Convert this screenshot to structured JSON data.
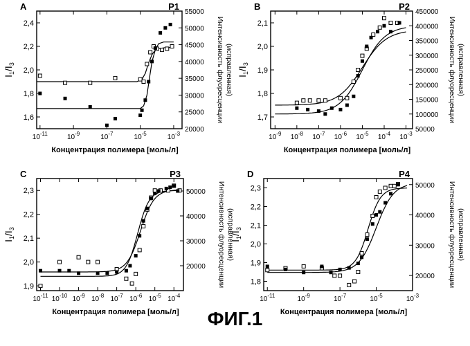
{
  "figure": {
    "caption": "ФИГ.1"
  },
  "chart_data": [
    {
      "type": "scatter",
      "panel_letter": "A",
      "title": "P1",
      "xlabel": "Концентрация полимера [моль/л]",
      "ylabel_main": "I",
      "ylabel_sub1": "1",
      "ylabel_slash": "/",
      "ylabel_main2": "I",
      "ylabel_sub2": "3",
      "y2label_line1": "Интенсивность флуоресценции",
      "y2label_line2": "(исправленная)",
      "x_scale": "log",
      "xlim": [
        -11.2,
        -2.5
      ],
      "ylim": [
        1.5,
        2.5
      ],
      "y2lim": [
        20000,
        55000
      ],
      "x_tick_exponents": [
        -11,
        -9,
        -7,
        -5,
        -3
      ],
      "y_ticks": [
        "1,6",
        "1,8",
        "2,0",
        "2,2",
        "2,4"
      ],
      "y_tick_values": [
        1.6,
        1.8,
        2.0,
        2.2,
        2.4
      ],
      "y2_ticks": [
        20000,
        25000,
        30000,
        35000,
        40000,
        45000,
        50000,
        55000
      ],
      "series": [
        {
          "marker": "open-square",
          "axis": "y",
          "x": [
            -11,
            -9.5,
            -8,
            -6.5,
            -5,
            -4.8,
            -4.6,
            -4.4,
            -4.2,
            -4,
            -3.7,
            -3.4,
            -3.1
          ],
          "y": [
            1.95,
            1.89,
            1.89,
            1.93,
            1.92,
            1.9,
            2.05,
            2.15,
            2.2,
            2.18,
            2.17,
            2.18,
            2.2
          ]
        },
        {
          "marker": "filled-square",
          "axis": "y2",
          "x": [
            -11,
            -9.5,
            -8,
            -7,
            -6.5,
            -5,
            -4.9,
            -4.7,
            -4.5,
            -4.3,
            -4.1,
            -3.8,
            -3.5,
            -3.2
          ],
          "y": [
            30500,
            29000,
            26500,
            21000,
            23000,
            24000,
            25500,
            28500,
            34000,
            40000,
            44000,
            48500,
            50000,
            51000
          ]
        }
      ],
      "fits": [
        {
          "axis": "y",
          "x": [
            -11.2,
            -5.2,
            -4.9,
            -4.7,
            -4.5,
            -4.3,
            -4.1,
            -3.9,
            -3.5,
            -3.0
          ],
          "y": [
            1.9,
            1.9,
            1.92,
            1.97,
            2.06,
            2.13,
            2.17,
            2.18,
            2.19,
            2.19
          ]
        },
        {
          "axis": "y2",
          "x": [
            -11.2,
            -5.0,
            -4.8,
            -4.6,
            -4.45,
            -4.3,
            -4.1,
            -3.9,
            -3.6,
            -3.0
          ],
          "y": [
            26000,
            26000,
            26800,
            30000,
            35000,
            40000,
            43500,
            45300,
            45800,
            45800
          ]
        }
      ]
    },
    {
      "type": "scatter",
      "panel_letter": "B",
      "title": "P2",
      "xlabel": "Концентрация полимера [моль/л]",
      "ylabel_main": "I",
      "ylabel_sub1": "1",
      "ylabel_slash": "/",
      "ylabel_main2": "I",
      "ylabel_sub2": "3",
      "y2label_line1": "Интенсивность флуоресценции",
      "y2label_line2": "(исправленная)",
      "x_scale": "log",
      "xlim": [
        -9.2,
        -2.7
      ],
      "ylim": [
        1.65,
        2.15
      ],
      "y2lim": [
        50000,
        450000
      ],
      "x_tick_exponents": [
        -9,
        -8,
        -7,
        -6,
        -5,
        -4,
        -3
      ],
      "y_ticks": [
        "1,7",
        "1,8",
        "1,9",
        "2,0",
        "2,1"
      ],
      "y_tick_values": [
        1.7,
        1.8,
        1.9,
        2.0,
        2.1
      ],
      "y2_ticks": [
        50000,
        100000,
        150000,
        200000,
        250000,
        300000,
        350000,
        400000,
        450000
      ],
      "series": [
        {
          "marker": "open-square",
          "axis": "y",
          "x": [
            -8,
            -7.7,
            -7.4,
            -7,
            -6.7,
            -6,
            -5.7,
            -5.4,
            -5.2,
            -5,
            -4.8,
            -4.5,
            -4.2,
            -4,
            -3.7,
            -3.4
          ],
          "y": [
            1.76,
            1.77,
            1.77,
            1.77,
            1.77,
            1.78,
            1.78,
            1.85,
            1.9,
            1.96,
            1.99,
            2.05,
            2.08,
            2.12,
            2.1,
            2.1
          ],
          "fit": {
            "lo": 1.75,
            "hi": 2.07,
            "mid": -5.0,
            "k": 1.8
          }
        },
        {
          "marker": "filled-square",
          "axis": "y2",
          "x": [
            -8,
            -7.5,
            -7,
            -6.7,
            -6.4,
            -6,
            -5.7,
            -5.4,
            -5.2,
            -5,
            -4.8,
            -4.6,
            -4.3,
            -4,
            -3.7,
            -3.3
          ],
          "y": [
            120000,
            115000,
            110000,
            100000,
            120000,
            115000,
            130000,
            160000,
            230000,
            280000,
            330000,
            360000,
            380000,
            400000,
            380000,
            410000
          ],
          "fit": {
            "lo": 100000,
            "hi": 400000,
            "mid": -5.0,
            "k": 1.9
          }
        }
      ]
    },
    {
      "type": "scatter",
      "panel_letter": "C",
      "title": "P3",
      "xlabel": "Концентрация полимера [моль/л]",
      "ylabel_main": "I",
      "ylabel_sub1": "1",
      "ylabel_slash": "/",
      "ylabel_main2": "I",
      "ylabel_sub2": "3",
      "y2label_line1": "Интенсивность флуоресценции",
      "y2label_line2": "(исправленная)",
      "x_scale": "log",
      "xlim": [
        -11.2,
        -3.5
      ],
      "ylim": [
        1.88,
        2.35
      ],
      "y2lim": [
        10000,
        55000
      ],
      "x_tick_exponents": [
        -11,
        -10,
        -9,
        -8,
        -7,
        -6,
        -5,
        -4
      ],
      "y_ticks": [
        "1,9",
        "2,0",
        "2,1",
        "2,2",
        "2,3"
      ],
      "y_tick_values": [
        1.9,
        2.0,
        2.1,
        2.2,
        2.3
      ],
      "y2_ticks": [
        20000,
        30000,
        40000,
        50000
      ],
      "series": [
        {
          "marker": "open-square",
          "axis": "y",
          "x": [
            -11,
            -10,
            -9,
            -8.5,
            -8,
            -7,
            -6.5,
            -6.2,
            -6,
            -5.8,
            -5.6,
            -5.4,
            -5.2,
            -5,
            -4.7,
            -4.3,
            -4,
            -3.7
          ],
          "y": [
            1.9,
            2.0,
            2.02,
            2.0,
            2.0,
            1.97,
            1.93,
            1.91,
            1.95,
            2.05,
            2.15,
            2.22,
            2.27,
            2.3,
            2.3,
            2.3,
            2.32,
            2.3
          ],
          "fit": {
            "lo": 1.94,
            "hi": 2.3,
            "mid": -5.9,
            "k": 3.3
          }
        },
        {
          "marker": "filled-square",
          "axis": "y2",
          "x": [
            -11,
            -10,
            -9.5,
            -9,
            -8,
            -7.5,
            -7,
            -6.5,
            -6.3,
            -6,
            -5.8,
            -5.6,
            -5.4,
            -5.2,
            -5,
            -4.8,
            -4.4,
            -4.2,
            -4,
            -3.8
          ],
          "y": [
            18000,
            18000,
            18000,
            17000,
            17000,
            17000,
            17500,
            18000,
            20000,
            24000,
            32000,
            38000,
            43000,
            47000,
            49000,
            50000,
            51000,
            51500,
            52000,
            50000
          ],
          "fit": {
            "lo": 17500,
            "hi": 50500,
            "mid": -5.75,
            "k": 2.8
          }
        }
      ]
    },
    {
      "type": "scatter",
      "panel_letter": "D",
      "title": "P4",
      "xlabel": "Концентрация полимера [моль/л]",
      "ylabel_main": "I",
      "ylabel_sub1": "1",
      "ylabel_slash": "/",
      "ylabel_main2": "I",
      "ylabel_sub2": "3",
      "y2label_line1": "Интенсивность флуоресценции",
      "y2label_line2": "(исправленная)",
      "x_scale": "log",
      "xlim": [
        -11.2,
        -3.0
      ],
      "ylim": [
        1.75,
        2.35
      ],
      "y2lim": [
        15000,
        52000
      ],
      "x_tick_exponents": [
        -11,
        -9,
        -7,
        -5,
        -3
      ],
      "y_ticks": [
        "1,8",
        "1,9",
        "2,0",
        "2,1",
        "2,2",
        "2,3"
      ],
      "y_tick_values": [
        1.8,
        1.9,
        2.0,
        2.1,
        2.2,
        2.3
      ],
      "y2_ticks": [
        20000,
        30000,
        40000,
        50000
      ],
      "series": [
        {
          "marker": "open-square",
          "axis": "y",
          "x": [
            -11,
            -10,
            -9,
            -8,
            -7.3,
            -7,
            -6.5,
            -6.2,
            -6,
            -5.8,
            -5.5,
            -5.2,
            -5,
            -4.8,
            -4.5,
            -4.2,
            -4,
            -3.8
          ],
          "y": [
            1.86,
            1.87,
            1.88,
            1.87,
            1.83,
            1.83,
            1.78,
            1.8,
            1.85,
            1.95,
            2.05,
            2.15,
            2.25,
            2.28,
            2.3,
            2.31,
            2.31,
            2.32
          ],
          "fit": {
            "lo": 1.86,
            "hi": 2.3,
            "mid": -5.45,
            "k": 2.9
          }
        },
        {
          "marker": "filled-square",
          "axis": "y2",
          "x": [
            -11,
            -10,
            -9,
            -8,
            -7.5,
            -7,
            -6.5,
            -6,
            -5.8,
            -5.5,
            -5.2,
            -5,
            -4.8,
            -4.5,
            -4.2,
            -3.8
          ],
          "y": [
            23000,
            22000,
            21000,
            23000,
            21000,
            22000,
            22500,
            24000,
            26000,
            32000,
            37000,
            40000,
            41000,
            44000,
            47000,
            50000
          ],
          "fit": {
            "lo": 21000,
            "hi": 50500,
            "mid": -5.0,
            "k": 2.1
          }
        }
      ]
    }
  ]
}
